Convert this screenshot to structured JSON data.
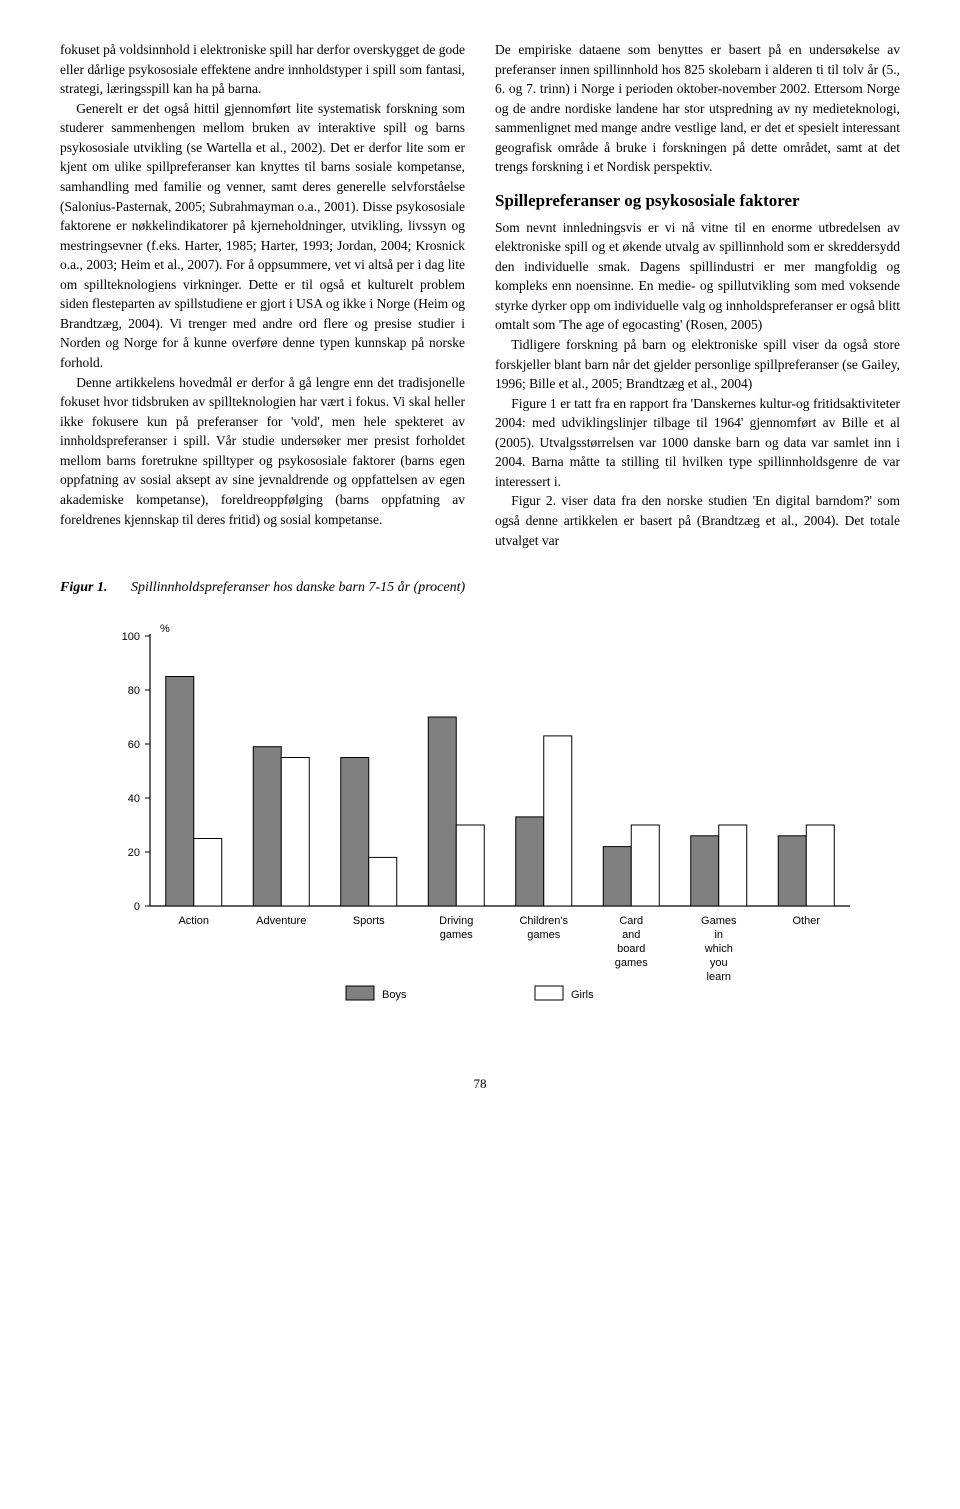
{
  "left_column": {
    "p1": "fokuset på voldsinnhold i elektroniske spill har derfor overskygget de gode eller dårlige psykososiale effektene andre innholdstyper i spill som fantasi, strategi, læringsspill kan ha på barna.",
    "p2": "Generelt er det også hittil gjennomført lite systematisk forskning som studerer sammenhengen mellom bruken av interaktive spill og barns psykososiale utvikling (se Wartella et al., 2002). Det er derfor lite som er kjent om ulike spillpreferanser kan knyttes til barns sosiale kompetanse, samhandling med familie og venner, samt deres generelle selvforståelse (Salonius-Pasternak, 2005; Subrahmayman o.a., 2001). Disse psykososiale faktorene er nøkkelindikatorer på kjerneholdninger, utvikling, livssyn og mestringsevner (f.eks. Harter, 1985; Harter, 1993; Jordan, 2004; Krosnick o.a., 2003; Heim et al., 2007). For å oppsummere, vet vi altså per i dag lite om spillteknologiens virkninger. Dette er til også et kulturelt problem siden flesteparten av spillstudiene er gjort i USA og ikke i Norge (Heim og Brandtzæg, 2004). Vi trenger med andre ord flere og presise studier i Norden og Norge for å kunne overføre denne typen kunnskap på norske forhold.",
    "p3": "Denne artikkelens hovedmål er derfor å gå lengre enn det tradisjonelle fokuset hvor tidsbruken av spillteknologien har vært i fokus. Vi skal heller ikke fokusere kun på preferanser for 'vold', men hele spekteret av innholdspreferanser i spill. Vår studie undersøker mer presist forholdet mellom barns foretrukne spilltyper og psykososiale faktorer (barns egen oppfatning av sosial aksept av sine jevnaldrende og oppfattelsen av egen akademiske kompetanse), foreldreoppfølging (barns oppfatning av foreldrenes kjennskap til deres fritid) og sosial kompetanse."
  },
  "right_column": {
    "p1": "De empiriske dataene som benyttes er basert på en undersøkelse av preferanser innen spillinnhold hos 825 skolebarn i alderen ti til tolv år (5., 6. og 7. trinn) i Norge i perioden oktober-november 2002. Ettersom Norge og de andre nordiske landene har stor utspredning av ny medieteknologi, sammenlignet med mange andre vestlige land, er det et spesielt interessant geografisk område å bruke i forskningen på dette området, samt at det trengs forskning i et Nordisk perspektiv.",
    "heading": "Spillepreferanser og psykososiale faktorer",
    "p2": "Som nevnt innledningsvis er vi nå vitne til en enorme utbredelsen av elektroniske spill og et økende utvalg av spillinnhold som er skreddersydd den individuelle smak. Dagens spillindustri er mer mangfoldig og kompleks enn noensinne. En medie- og spillutvikling som med voksende styrke dyrker opp om individuelle valg og innholdspreferanser er også blitt omtalt som 'The age of egocasting' (Rosen, 2005)",
    "p3": "Tidligere forskning på barn og elektroniske spill viser da også store forskjeller blant barn når det gjelder personlige spillpreferanser (se Gailey, 1996; Bille et al., 2005; Brandtzæg et al., 2004)",
    "p4": "Figure 1 er tatt fra en rapport fra 'Danskernes kultur-og fritidsaktiviteter 2004: med udviklingslinjer tilbage til 1964' gjennomført av Bille et al (2005). Utvalgsstørrelsen var 1000 danske barn og data var samlet inn i 2004. Barna måtte ta stilling til hvilken type spillinnholdsgenre de var interessert i.",
    "p5": "Figur 2. viser data fra den norske studien 'En digital barndom?' som også denne artikkelen er basert på (Brandtzæg et al., 2004). Det totale utvalget var"
  },
  "figure": {
    "label": "Figur 1.",
    "caption": "Spillinnholdspreferanser hos danske barn 7-15 år (procent)"
  },
  "chart": {
    "type": "bar",
    "y_unit": "%",
    "ylim": [
      0,
      100
    ],
    "ytick_step": 20,
    "categories": [
      "Action",
      "Adventure",
      "Sports",
      "Driving games",
      "Children's games",
      "Card and board games",
      "Games in which you learn",
      "Other"
    ],
    "series": [
      {
        "name": "Boys",
        "color": "#808080",
        "values": [
          85,
          59,
          55,
          70,
          33,
          22,
          26,
          26
        ]
      },
      {
        "name": "Girls",
        "color": "#ffffff",
        "values": [
          25,
          55,
          18,
          30,
          63,
          30,
          30,
          30
        ]
      }
    ],
    "bar_border": "#000000",
    "axis_color": "#000000",
    "font_size": 11,
    "legend_labels": [
      "Boys",
      "Girls"
    ]
  },
  "page_number": "78"
}
